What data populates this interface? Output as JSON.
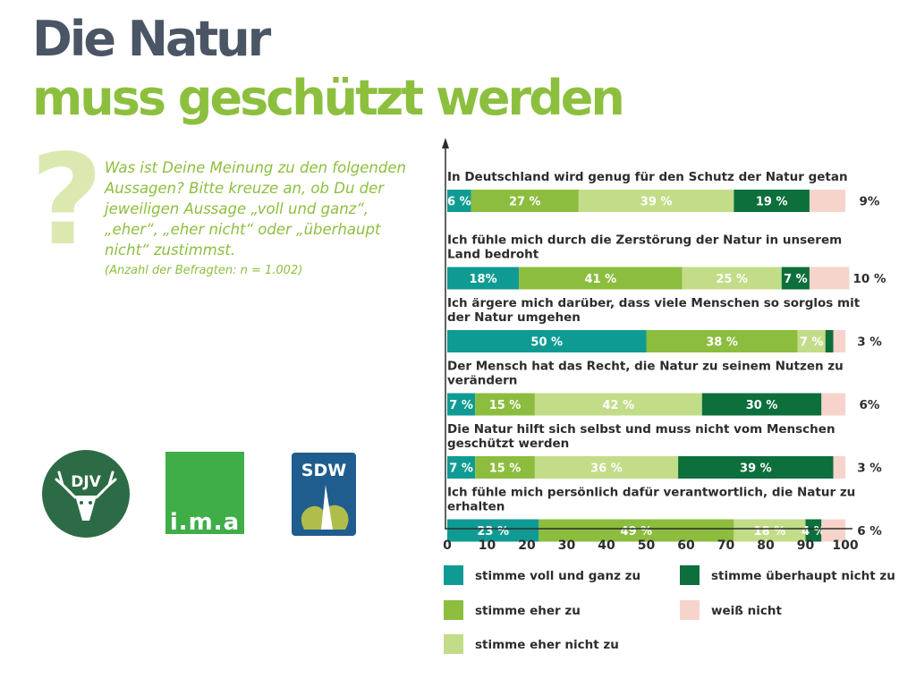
{
  "header": {
    "title_line1": "Die Natur",
    "title_line2": "muss geschützt werden",
    "question_mark": "?",
    "question": "Was ist Deine Meinung zu den folgenden Aussagen? Bitte kreuze an, ob Du der jeweiligen Aussage „voll und ganz“, „eher“, „eher nicht“ oder „überhaupt nicht“ zustimmst.",
    "sample_note": "(Anzahl der Befragten: n = 1.002)"
  },
  "logos": {
    "djv": "DJV",
    "ima": "i.m.a",
    "sdw": "SDW"
  },
  "colors": {
    "voll_und_ganz": "#0f9b93",
    "eher": "#8cbd3e",
    "eher_nicht": "#c3dc88",
    "ueberhaupt_nicht": "#0c6f3c",
    "weiss_nicht": "#f6d4cb",
    "title_dark": "#4a5665",
    "title_green": "#8dbf3f"
  },
  "chart_data": {
    "type": "bar",
    "orientation": "horizontal",
    "stacked": true,
    "xlim": [
      0,
      100
    ],
    "xticks": [
      0,
      10,
      20,
      30,
      40,
      50,
      60,
      70,
      80,
      90,
      100
    ],
    "legend_position": "bottom",
    "series": [
      {
        "name": "stimme voll und ganz zu",
        "color": "#0f9b93"
      },
      {
        "name": "stimme eher zu",
        "color": "#8cbd3e"
      },
      {
        "name": "stimme eher nicht zu",
        "color": "#c3dc88"
      },
      {
        "name": "stimme überhaupt nicht zu",
        "color": "#0c6f3c"
      },
      {
        "name": "weiß nicht",
        "color": "#f6d4cb"
      }
    ],
    "categories": [
      {
        "label_lines": [
          "In Deutschland wird genug für den Schutz der Natur getan"
        ],
        "values": [
          6,
          27,
          39,
          19,
          9
        ],
        "labels": [
          "6 %",
          "27 %",
          "39 %",
          "19 %",
          ""
        ],
        "end_label": "9%"
      },
      {
        "label_lines": [
          "Ich fühle mich durch die Zerstörung der Natur in unserem",
          "Land bedroht"
        ],
        "values": [
          18,
          41,
          25,
          7,
          10
        ],
        "labels": [
          "18%",
          "41 %",
          "25 %",
          "7 %",
          ""
        ],
        "end_label": "10 %"
      },
      {
        "label_lines": [
          "Ich ärgere mich darüber, dass viele Menschen so sorglos mit",
          "der Natur umgehen"
        ],
        "values": [
          50,
          38,
          7,
          2,
          3
        ],
        "labels": [
          "50 %",
          "38 %",
          "7 %",
          "",
          ""
        ],
        "end_label": "3 %"
      },
      {
        "label_lines": [
          "Der Mensch hat das Recht, die Natur zu seinem Nutzen zu",
          "verändern"
        ],
        "values": [
          7,
          15,
          42,
          30,
          6
        ],
        "labels": [
          "7 %",
          "15 %",
          "42 %",
          "30 %",
          ""
        ],
        "end_label": "6%"
      },
      {
        "label_lines": [
          "Die Natur hilft sich selbst und muss nicht vom Menschen",
          "geschützt werden"
        ],
        "values": [
          7,
          15,
          36,
          39,
          3
        ],
        "labels": [
          "7 %",
          "15 %",
          "36 %",
          "39 %",
          ""
        ],
        "end_label": "3 %"
      },
      {
        "label_lines": [
          "Ich fühle mich persönlich dafür verantwortlich, die Natur zu",
          "erhalten"
        ],
        "values": [
          23,
          49,
          18,
          4,
          6
        ],
        "labels": [
          "23 %",
          "49 %",
          "18 %",
          "4 %",
          ""
        ],
        "end_label": "6 %"
      }
    ]
  }
}
